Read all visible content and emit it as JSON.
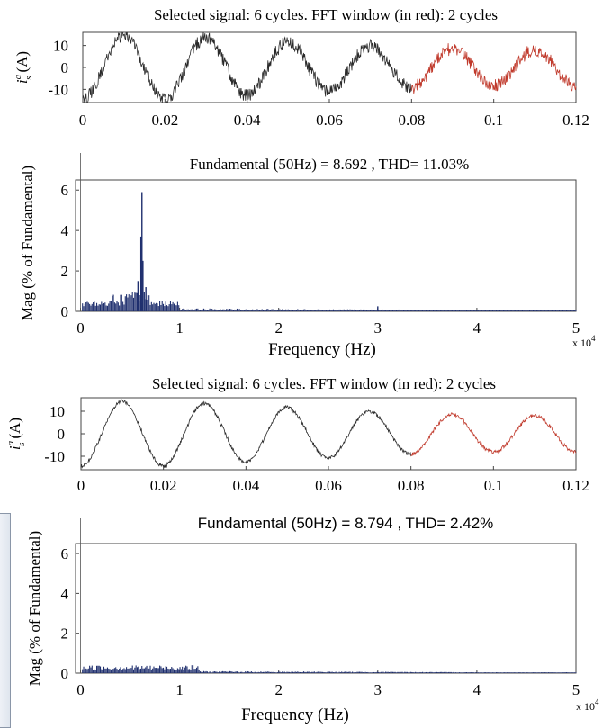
{
  "colors": {
    "signal": "#2a2a2a",
    "fft_window": "#c0392b",
    "bar": "#1f2f6e",
    "axis": "#000000"
  },
  "chart_data": [
    {
      "type": "line",
      "title": "Selected signal: 6 cycles. FFT window (in red): 2 cycles",
      "ylabel_parts": {
        "base": "i",
        "sup": "a",
        "sub": "s",
        "unit": "(A)"
      },
      "xlim": [
        0,
        0.12
      ],
      "ylim": [
        -16,
        16
      ],
      "xticks": [
        "0",
        "0.02",
        "0.04",
        "0.06",
        "0.08",
        "0.1",
        "0.12"
      ],
      "yticks": [
        "10",
        "0",
        "-10"
      ],
      "series": [
        {
          "amplitude_profile": [
            16,
            16,
            14,
            12,
            10,
            9,
            9
          ],
          "frequency_hz": 50,
          "fft_window_start": 0.08,
          "noise": 3.0
        }
      ]
    },
    {
      "type": "bar",
      "title": "Fundamental (50Hz) = 8.692 , THD= 11.03%",
      "xlabel": "Frequency (Hz)",
      "ylabel": "Mag (% of Fundamental)",
      "xlim": [
        -0.05,
        5
      ],
      "ylim": [
        0,
        6.5
      ],
      "xticks": [
        "0",
        "1",
        "2",
        "3",
        "4",
        "5"
      ],
      "yticks": [
        "0",
        "2",
        "4",
        "6"
      ],
      "x_multiplier": "x 10",
      "x_multiplier_exp": "4",
      "peaks": [
        {
          "x": 0.62,
          "value": 5.9
        },
        {
          "x": 0.61,
          "value": 3.7
        },
        {
          "x": 0.63,
          "value": 2.5
        },
        {
          "x": 0.58,
          "value": 1.5
        },
        {
          "x": 0.66,
          "value": 1.2
        },
        {
          "x": 3.0,
          "value": 0.25
        }
      ]
    },
    {
      "type": "line",
      "title": "Selected signal: 6 cycles. FFT window (in red): 2 cycles",
      "ylabel_parts": {
        "base": "i",
        "sup": "a",
        "sub": "s",
        "unit": "(A)"
      },
      "xlim": [
        0,
        0.12
      ],
      "ylim": [
        -16,
        16
      ],
      "xticks": [
        "0",
        "0.02",
        "0.04",
        "0.06",
        "0.08",
        "0.1",
        "0.12"
      ],
      "yticks": [
        "10",
        "0",
        "-10"
      ],
      "series": [
        {
          "amplitude_profile": [
            16,
            16,
            14,
            12,
            10,
            9,
            9
          ],
          "frequency_hz": 50,
          "fft_window_start": 0.08,
          "noise": 0.8
        }
      ]
    },
    {
      "type": "bar",
      "title": "Fundamental (50Hz) = 8.794 , THD= 2.42%",
      "xlabel": "Frequency (Hz)",
      "ylabel": "Mag (% of Fundamental)",
      "xlim": [
        -0.05,
        5
      ],
      "ylim": [
        0,
        6.5
      ],
      "xticks": [
        "0",
        "1",
        "2",
        "3",
        "4",
        "5"
      ],
      "yticks": [
        "0",
        "2",
        "4",
        "6"
      ],
      "x_multiplier": "x 10",
      "x_multiplier_exp": "4",
      "peaks": []
    }
  ]
}
